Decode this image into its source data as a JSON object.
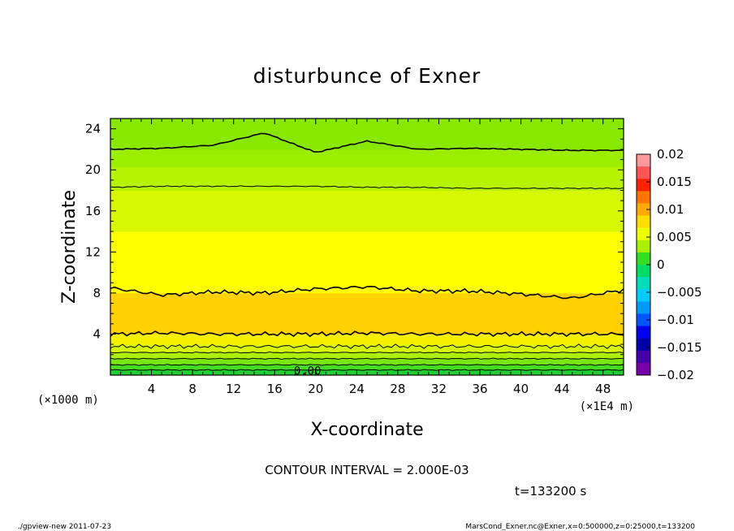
{
  "chart_data": {
    "type": "heatmap",
    "title": "disturbunce of Exner",
    "xlabel": "X-coordinate",
    "ylabel": "Z-coordinate",
    "x_unit": "(×1E4 m)",
    "y_unit": "(×1000 m)",
    "xlim": [
      0,
      50
    ],
    "ylim": [
      0,
      25
    ],
    "x_ticks": [
      4,
      8,
      12,
      16,
      20,
      24,
      28,
      32,
      36,
      40,
      44,
      48
    ],
    "y_ticks": [
      4,
      8,
      12,
      16,
      20,
      24
    ],
    "contour_interval_text": "CONTOUR INTERVAL = 2.000E-03",
    "time_text": "t=133200 s",
    "contour_label": "0.00",
    "colorbar": {
      "min": -0.02,
      "max": 0.02,
      "tick_labels": [
        "0.02",
        "0.015",
        "0.01",
        "0.005",
        "0",
        "−0.005",
        "−0.01",
        "−0.015",
        "−0.02"
      ],
      "tick_values": [
        0.02,
        0.015,
        0.01,
        0.005,
        0,
        -0.005,
        -0.01,
        -0.015,
        -0.02
      ]
    },
    "bands": [
      {
        "z0": 0.0,
        "z1": 0.5,
        "value": 0.0005,
        "color": "#22cc33"
      },
      {
        "z0": 0.5,
        "z1": 1.0,
        "value": 0.0015,
        "color": "#44dd22"
      },
      {
        "z0": 1.0,
        "z1": 1.6,
        "value": 0.0025,
        "color": "#77e611"
      },
      {
        "z0": 1.6,
        "z1": 2.2,
        "value": 0.0035,
        "color": "#aaf000"
      },
      {
        "z0": 2.2,
        "z1": 3.0,
        "value": 0.0045,
        "color": "#d8f800"
      },
      {
        "z0": 3.0,
        "z1": 4.0,
        "value": 0.0055,
        "color": "#f4f000"
      },
      {
        "z0": 4.0,
        "z1": 8.0,
        "value": 0.0085,
        "color": "#ffd100"
      },
      {
        "z0": 8.0,
        "z1": 14.0,
        "value": 0.006,
        "color": "#ffff00"
      },
      {
        "z0": 14.0,
        "z1": 18.0,
        "value": 0.005,
        "color": "#d7f800"
      },
      {
        "z0": 18.0,
        "z1": 20.3,
        "value": 0.004,
        "color": "#b6f300"
      },
      {
        "z0": 20.3,
        "z1": 22.0,
        "value": 0.003,
        "color": "#9cee00"
      },
      {
        "z0": 22.0,
        "z1": 25.0,
        "value": 0.002,
        "color": "#88e800"
      }
    ],
    "contours": [
      {
        "level": 0.0,
        "z": [
          0.5,
          0.5,
          0.5,
          0.5,
          0.5,
          0.5,
          0.5,
          0.5,
          0.5,
          0.5,
          0.5
        ]
      },
      {
        "level": 0.002,
        "z": [
          1.0,
          1.0,
          1.0,
          1.0,
          1.0,
          1.0,
          1.0,
          1.0,
          1.0,
          1.0,
          1.0
        ]
      },
      {
        "level": 0.004,
        "z": [
          1.6,
          1.6,
          1.6,
          1.6,
          1.6,
          1.6,
          1.6,
          1.6,
          1.6,
          1.6,
          1.6
        ]
      },
      {
        "level": 0.006,
        "z": [
          2.2,
          2.2,
          2.2,
          2.2,
          2.2,
          2.2,
          2.2,
          2.2,
          2.2,
          2.2,
          2.2
        ]
      },
      {
        "level": 0.008,
        "z": [
          2.8,
          2.8,
          2.8,
          2.8,
          2.8,
          2.8,
          2.8,
          2.8,
          2.8,
          2.8,
          2.8
        ]
      },
      {
        "level": 0.01,
        "z": [
          4.0,
          4.1,
          4.0,
          4.0,
          4.0,
          4.1,
          4.0,
          4.0,
          4.0,
          4.0,
          4.0
        ]
      },
      {
        "level": 0.008,
        "z": [
          8.5,
          7.8,
          8.1,
          8.0,
          8.4,
          8.6,
          8.2,
          8.2,
          7.9,
          7.5,
          8.3
        ]
      },
      {
        "level": 0.004,
        "z": [
          18.3,
          18.4,
          18.4,
          18.4,
          18.4,
          18.3,
          18.3,
          18.2,
          18.2,
          18.2,
          18.2
        ]
      },
      {
        "level": 0.002,
        "z": [
          22.0,
          22.1,
          22.4,
          23.6,
          21.7,
          22.8,
          22.0,
          22.1,
          22.0,
          21.9,
          21.9
        ]
      }
    ]
  },
  "footer": {
    "left": "./gpview-new   2011-07-23",
    "right": "MarsCond_Exner.nc@Exner,x=0:500000,z=0:25000,t=133200"
  }
}
